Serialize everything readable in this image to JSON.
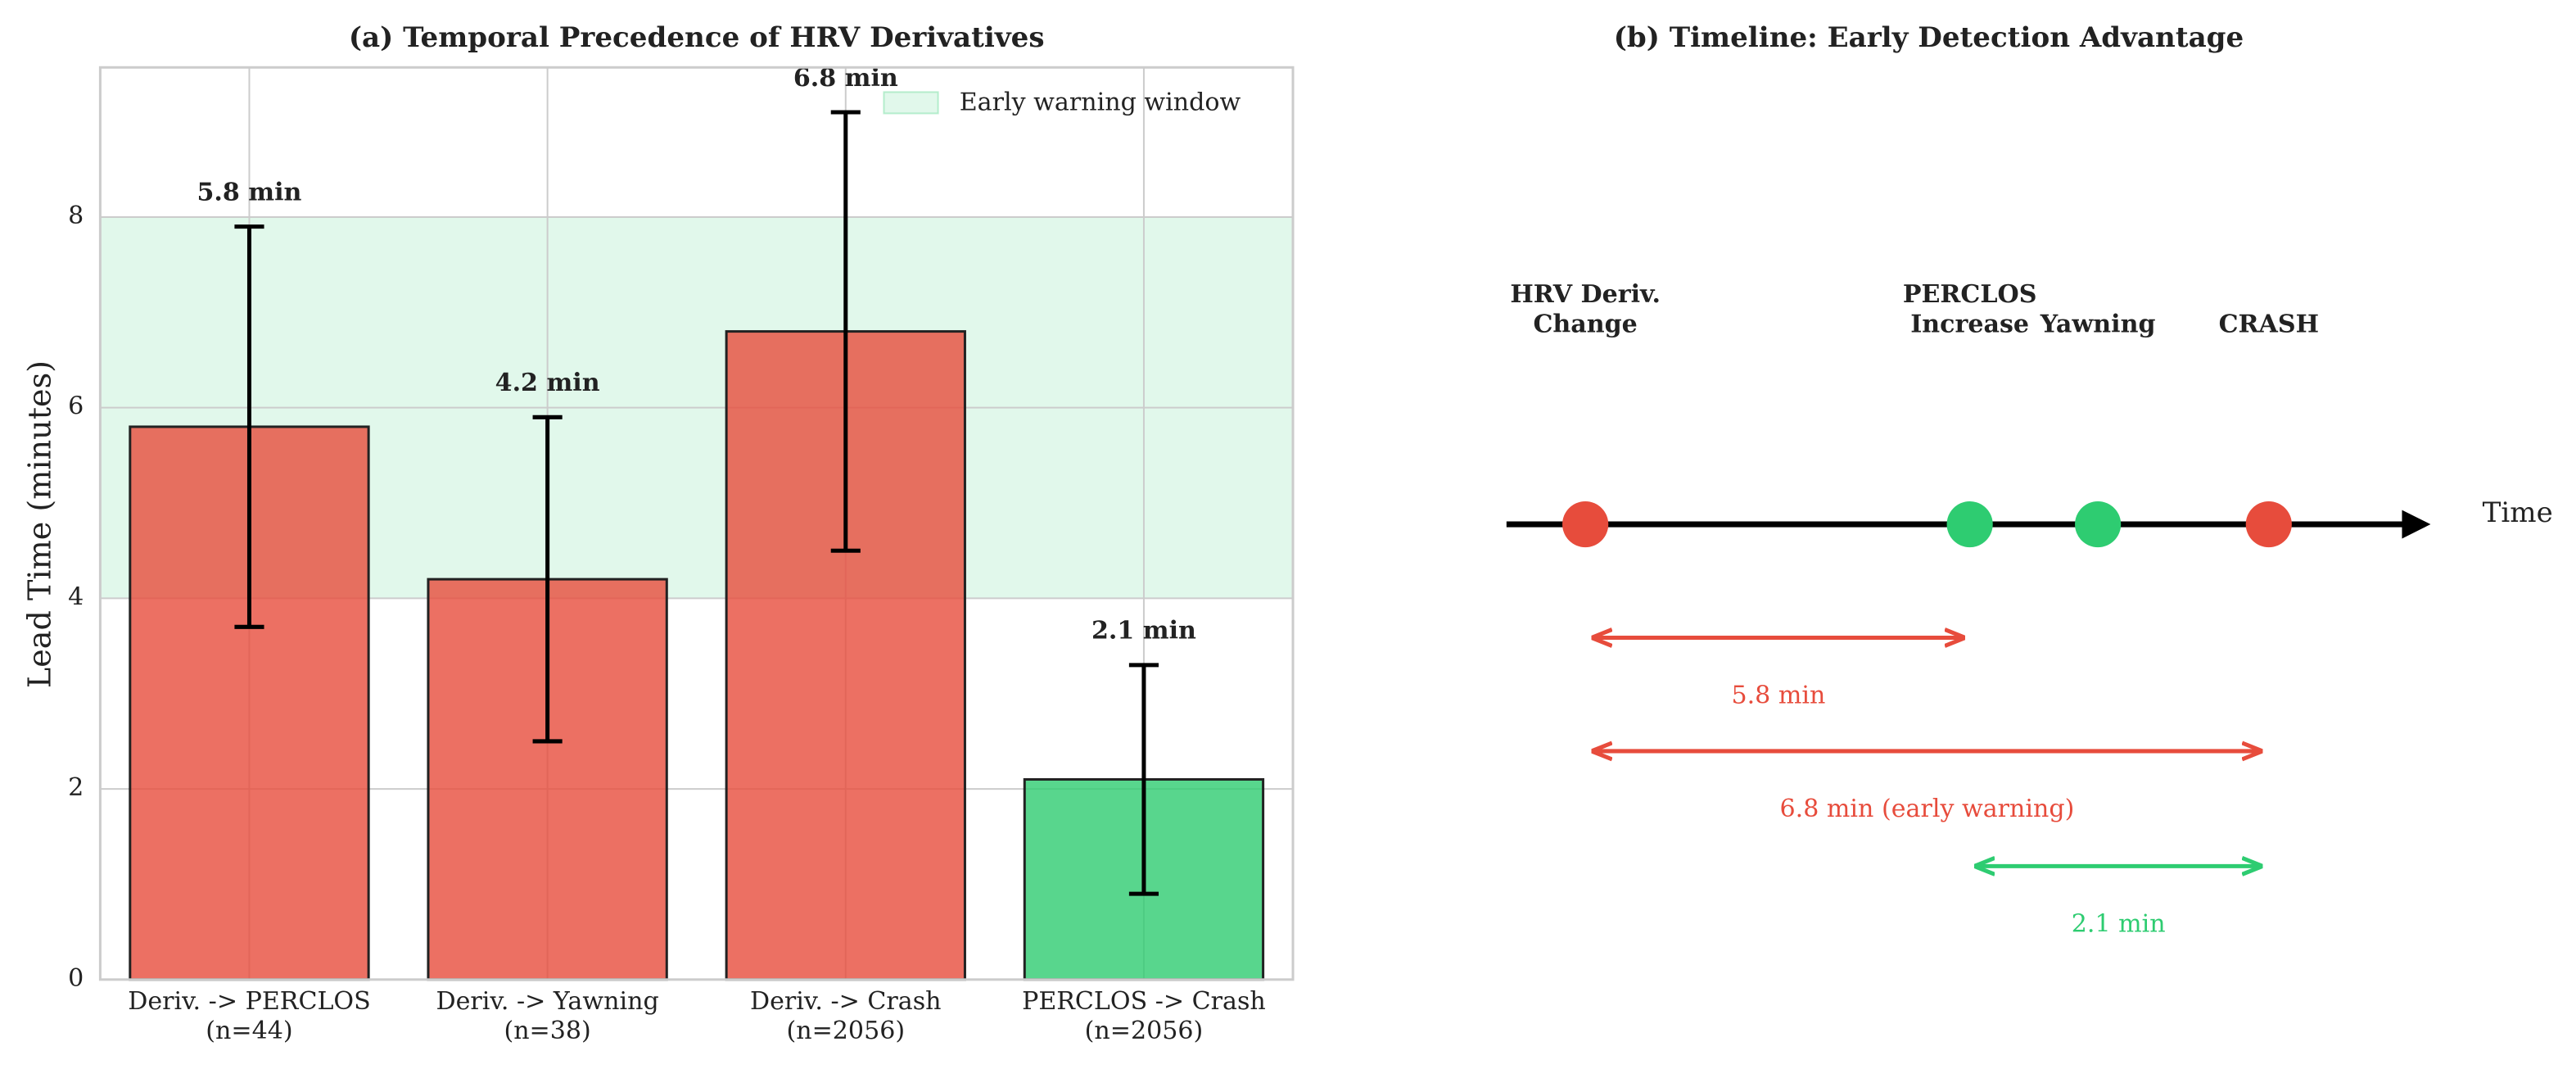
{
  "chart_data": {
    "type": "bar",
    "title": "(a) Temporal Precedence of HRV Derivatives",
    "ylabel": "Lead Time (minutes)",
    "categories": [
      [
        "Deriv. -> PERCLOS",
        "(n=44)"
      ],
      [
        "Deriv. -> Yawning",
        "(n=38)"
      ],
      [
        "Deriv. -> Crash",
        "(n=2056)"
      ],
      [
        "PERCLOS -> Crash",
        "(n=2056)"
      ]
    ],
    "values": [
      5.8,
      4.2,
      6.8,
      2.1
    ],
    "errors": [
      2.1,
      1.7,
      2.3,
      1.2
    ],
    "value_labels": [
      "5.8 min",
      "4.2 min",
      "6.8 min",
      "2.1 min"
    ],
    "colors": [
      "#e74c3c",
      "#e74c3c",
      "#e74c3c",
      "#2ecc71"
    ],
    "span": {
      "range": [
        4,
        8
      ],
      "label": "Early warning window",
      "color": "#2ecc71"
    },
    "ylim": [
      0,
      9.57
    ],
    "yticks": [
      0,
      2,
      4,
      6,
      8
    ],
    "grid": true,
    "legend": "upper right"
  },
  "timeline": {
    "title": "(b) Timeline: Early Detection Advantage",
    "axis_label": "Time",
    "events": [
      {
        "label": [
          "HRV Deriv.",
          "Change"
        ],
        "color": "#e74c3c"
      },
      {
        "label": [
          "PERCLOS",
          "Increase"
        ],
        "color": "#2ecc71"
      },
      {
        "label": [
          "Yawning"
        ],
        "color": "#2ecc71"
      },
      {
        "label": [
          "CRASH"
        ],
        "color": "#e74c3c"
      }
    ],
    "spans": [
      {
        "label": "5.8 min",
        "color": "#e74c3c"
      },
      {
        "label": "6.8 min (early warning)",
        "color": "#e74c3c"
      },
      {
        "label": "2.1 min",
        "color": "#2ecc71"
      }
    ]
  }
}
